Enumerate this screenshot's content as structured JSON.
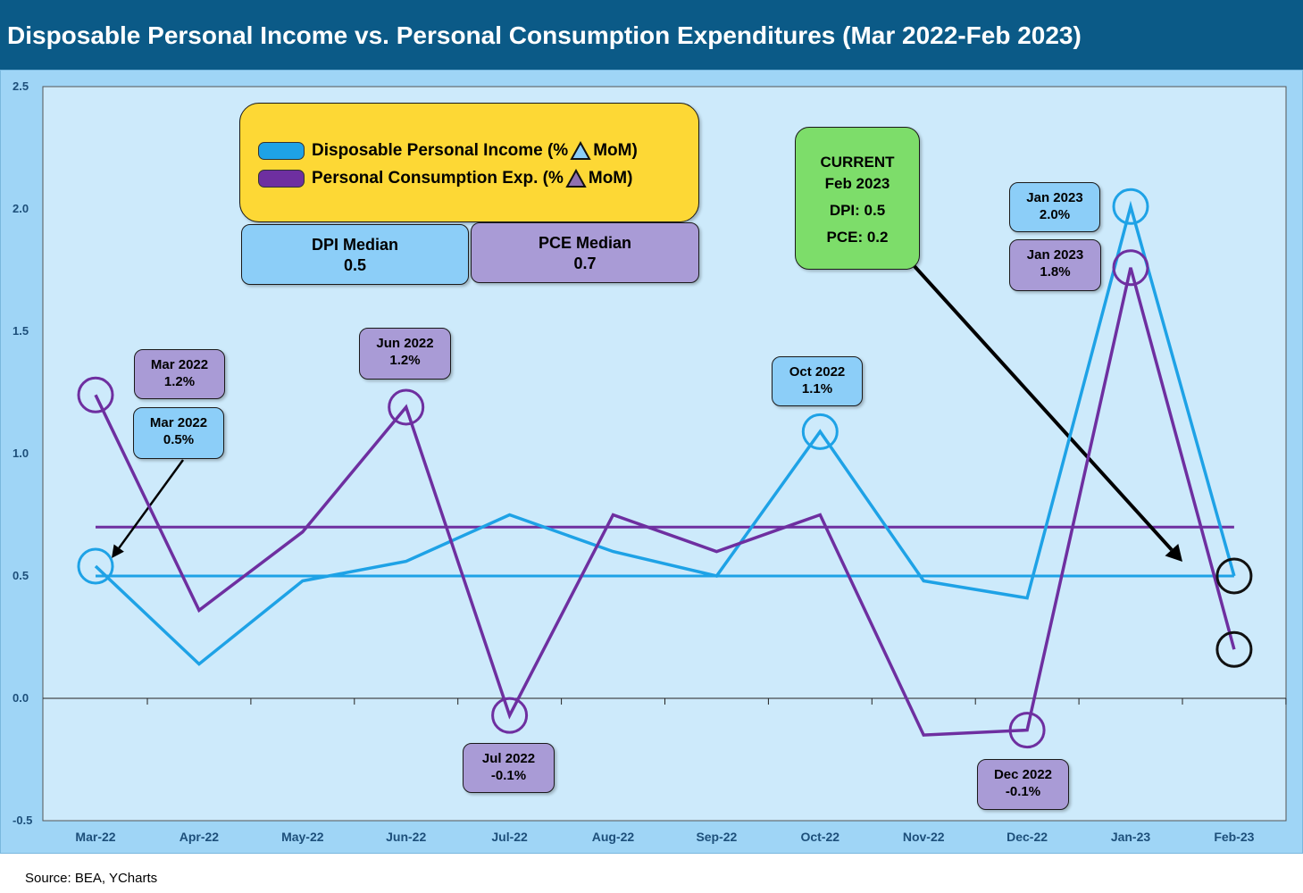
{
  "title": "Disposable Personal Income vs. Personal Consumption Expenditures (Mar 2022-Feb 2023)",
  "source": "Source: BEA, YCharts",
  "colors": {
    "dpi": "#1ea2e6",
    "pce": "#6e2fa0",
    "header": "#0b5a87",
    "panel": "#9fd5f6",
    "plot": "#cdeafb",
    "legend": "#fdd835",
    "current": "#7ddd6a"
  },
  "legend": {
    "dpi_before": "Disposable Personal Income (%",
    "pce_before": "Personal Consumption Exp. (%",
    "after": "MoM)"
  },
  "medians": {
    "dpi": {
      "label": "DPI Median",
      "value": "0.5"
    },
    "pce": {
      "label": "PCE Median",
      "value": "0.7"
    }
  },
  "current": {
    "line1": "CURRENT",
    "line2": "Feb 2023",
    "line3": "DPI: 0.5",
    "line4": "PCE: 0.2"
  },
  "annotations": {
    "pce_mar": {
      "date": "Mar 2022",
      "value": "1.2%"
    },
    "dpi_mar": {
      "date": "Mar 2022",
      "value": "0.5%"
    },
    "pce_jun": {
      "date": "Jun 2022",
      "value": "1.2%"
    },
    "pce_jul": {
      "date": "Jul 2022",
      "value": "-0.1%"
    },
    "dpi_oct": {
      "date": "Oct 2022",
      "value": "1.1%"
    },
    "pce_dec": {
      "date": "Dec 2022",
      "value": "-0.1%"
    },
    "dpi_jan": {
      "date": "Jan 2023",
      "value": "2.0%"
    },
    "pce_jan": {
      "date": "Jan 2023",
      "value": "1.8%"
    }
  },
  "chart_data": {
    "type": "line",
    "title": "Disposable Personal Income vs. Personal Consumption Expenditures (Mar 2022-Feb 2023)",
    "categories": [
      "Mar-22",
      "Apr-22",
      "May-22",
      "Jun-22",
      "Jul-22",
      "Aug-22",
      "Sep-22",
      "Oct-22",
      "Nov-22",
      "Dec-22",
      "Jan-23",
      "Feb-23"
    ],
    "ylim": [
      -0.5,
      2.5
    ],
    "yticks": [
      "2.5",
      "2.0",
      "1.5",
      "1.0",
      "0.5",
      "0.0",
      "-0.5"
    ],
    "ytick_values": [
      2.5,
      2.0,
      1.5,
      1.0,
      0.5,
      0.0,
      -0.5
    ],
    "grid": false,
    "series": [
      {
        "name": "Disposable Personal Income (% MoM)",
        "values": [
          0.54,
          0.14,
          0.48,
          0.56,
          0.75,
          0.6,
          0.5,
          1.09,
          0.48,
          0.41,
          2.01,
          0.5
        ]
      },
      {
        "name": "Personal Consumption Exp. (% MoM)",
        "values": [
          1.24,
          0.36,
          0.68,
          1.19,
          -0.07,
          0.75,
          0.6,
          0.75,
          -0.15,
          -0.13,
          1.76,
          0.2
        ]
      }
    ],
    "reference_lines": [
      {
        "name": "DPI Median",
        "value": 0.5
      },
      {
        "name": "PCE Median",
        "value": 0.7
      }
    ]
  }
}
